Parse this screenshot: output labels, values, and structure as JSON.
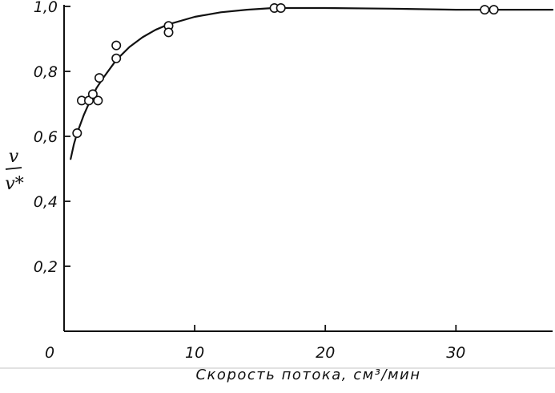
{
  "chart_data": {
    "type": "scatter",
    "xlabel": "Скорость потока, см³/мин",
    "ylabel": {
      "numerator": "v",
      "denominator": "v*"
    },
    "xlim": [
      0,
      37.4
    ],
    "ylim": [
      0,
      1.0
    ],
    "grid": false,
    "legend": "none",
    "x_ticks": [
      {
        "value": 0,
        "label": "0"
      },
      {
        "value": 10,
        "label": "10"
      },
      {
        "value": 20,
        "label": "20"
      },
      {
        "value": 30,
        "label": "30"
      }
    ],
    "y_ticks": [
      {
        "value": 0.2,
        "label": "0,2"
      },
      {
        "value": 0.4,
        "label": "0,4"
      },
      {
        "value": 0.6,
        "label": "0,6"
      },
      {
        "value": 0.8,
        "label": "0,8"
      },
      {
        "value": 1.0,
        "label": "1,0"
      }
    ],
    "series": [
      {
        "type": "scatter",
        "marker": "open-circle",
        "points": [
          [
            1.0,
            0.61
          ],
          [
            1.35,
            0.71
          ],
          [
            1.9,
            0.71
          ],
          [
            2.2,
            0.73
          ],
          [
            2.6,
            0.71
          ],
          [
            2.7,
            0.78
          ],
          [
            4.0,
            0.88
          ],
          [
            4.0,
            0.84
          ],
          [
            8.0,
            0.94
          ],
          [
            8.0,
            0.92
          ],
          [
            16.1,
            0.995
          ],
          [
            16.6,
            0.995
          ],
          [
            32.2,
            0.99
          ],
          [
            32.9,
            0.99
          ]
        ]
      },
      {
        "type": "line",
        "points": [
          [
            0.5,
            0.53
          ],
          [
            0.75,
            0.575
          ],
          [
            1.0,
            0.61
          ],
          [
            1.5,
            0.665
          ],
          [
            2.0,
            0.71
          ],
          [
            2.5,
            0.75
          ],
          [
            3.0,
            0.78
          ],
          [
            4.0,
            0.835
          ],
          [
            5.0,
            0.875
          ],
          [
            6.0,
            0.905
          ],
          [
            7.0,
            0.928
          ],
          [
            8.0,
            0.945
          ],
          [
            10.0,
            0.968
          ],
          [
            12.0,
            0.982
          ],
          [
            14.0,
            0.99
          ],
          [
            16.0,
            0.995
          ],
          [
            20.0,
            0.995
          ],
          [
            25.0,
            0.993
          ],
          [
            30.0,
            0.99
          ],
          [
            37.4,
            0.99
          ]
        ]
      }
    ],
    "colors": {
      "ink": "#111111",
      "background": "#ffffff"
    }
  }
}
